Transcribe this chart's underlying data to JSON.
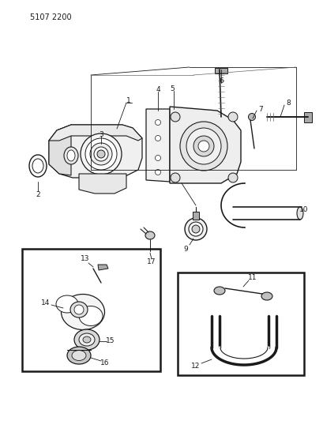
{
  "title": "5107 2200",
  "bg_color": "#ffffff",
  "fig_width": 4.1,
  "fig_height": 5.33,
  "dpi": 100,
  "line_color": "#1a1a1a",
  "label_fs": 6.5,
  "title_fs": 7.0
}
